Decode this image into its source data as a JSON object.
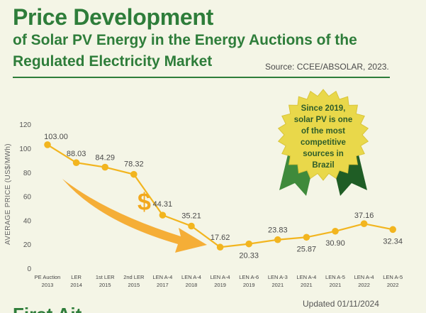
{
  "header": {
    "title": "Price Development",
    "subtitle_line1": "of Solar PV Energy in the Energy Auctions of the",
    "subtitle_line2": "Regulated Electricity Market",
    "source": "Source: CCEE/ABSOLAR, 2023."
  },
  "footer": {
    "updated": "Updated 01/11/2024",
    "next_heading": "First Ait"
  },
  "badge": {
    "lines": [
      "Since 2019,",
      "solar PV is one",
      "of the most",
      "competitive",
      "sources in",
      "Brazil"
    ]
  },
  "decor": {
    "currency_symbol": "$"
  },
  "colors": {
    "line": "#f2b51f",
    "title": "#2e7d3a",
    "arrow": "#f5a623",
    "badge": "#e9d84a"
  },
  "chart_data": {
    "type": "line",
    "ylabel": "AVERAGE PRICE (US$/MWh)",
    "ylim": [
      0,
      120
    ],
    "yticks": [
      0,
      20,
      40,
      60,
      80,
      100,
      120
    ],
    "grid": false,
    "categories": [
      {
        "top": "PE Auction",
        "bottom": "2013"
      },
      {
        "top": "LER",
        "bottom": "2014"
      },
      {
        "top": "1st LER",
        "bottom": "2015"
      },
      {
        "top": "2nd LER",
        "bottom": "2015"
      },
      {
        "top": "LEN A-4",
        "bottom": "2017"
      },
      {
        "top": "LEN A-4",
        "bottom": "2018"
      },
      {
        "top": "LEN A-4",
        "bottom": "2019"
      },
      {
        "top": "LEN A-6",
        "bottom": "2019"
      },
      {
        "top": "LEN A-3",
        "bottom": "2021"
      },
      {
        "top": "LEN A-4",
        "bottom": "2021"
      },
      {
        "top": "LEN A-5",
        "bottom": "2021"
      },
      {
        "top": "LEN A-4",
        "bottom": "2022"
      },
      {
        "top": "LEN A-5",
        "bottom": "2022"
      }
    ],
    "values": [
      103.0,
      88.03,
      84.29,
      78.32,
      44.31,
      35.21,
      17.62,
      20.33,
      23.83,
      25.87,
      30.9,
      37.16,
      32.34
    ],
    "labels": [
      "103.00",
      "88.03",
      "84.29",
      "78.32",
      "44.31",
      "35.21",
      "17.62",
      "20.33",
      "23.83",
      "25.87",
      "30.90",
      "37.16",
      "32.34"
    ]
  }
}
